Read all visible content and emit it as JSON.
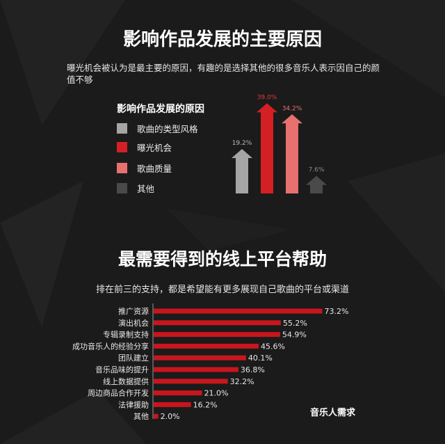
{
  "section1": {
    "title": "影响作品发展的主要原因",
    "description": "曝光机会被认为是最主要的原因，有趣的是选择其他的很多音乐人表示因自己的颜值不够",
    "legend_title": "影响作品发展的原因"
  },
  "section2": {
    "title": "最需要得到的线上平台帮助",
    "description": "排在前三的支持，都是希望能有更多展现自己歌曲的平台或渠道",
    "footer_label": "音乐人需求"
  },
  "colors": {
    "gray": "#a5a5a5",
    "red": "#d42024",
    "pink": "#e8706f",
    "dark": "#4a4a4a",
    "bar_red": "#c8161d",
    "label_red": "#e23a3a"
  },
  "chart_data": [
    {
      "type": "bar",
      "title": "影响作品发展的原因",
      "categories": [
        "歌曲的类型风格",
        "曝光机会",
        "歌曲质量",
        "其他"
      ],
      "values": [
        19.2,
        39.0,
        34.2,
        7.6
      ],
      "value_labels": [
        "19.2%",
        "39.0%",
        "34.2%",
        "7.6%"
      ],
      "bar_colors": [
        "#a5a5a5",
        "#d42024",
        "#e8706f",
        "#4a4a4a"
      ],
      "label_colors": [
        "#bdbdbd",
        "#e23a3a",
        "#e8706f",
        "#8a8a8a"
      ],
      "style": "arrow",
      "ylim": [
        0,
        40
      ]
    },
    {
      "type": "bar",
      "orientation": "horizontal",
      "title": "",
      "categories": [
        "推广资源",
        "演出机会",
        "专辑录制支持",
        "成功音乐人的经验分享",
        "团队建立",
        "音乐品味的提升",
        "线上数据提供",
        "周边商品合作开发",
        "法律援助",
        "其他"
      ],
      "values": [
        73.2,
        55.2,
        54.9,
        45.6,
        40.1,
        36.8,
        32.2,
        21.0,
        16.2,
        2.0
      ],
      "value_labels": [
        "73.2%",
        "55.2%",
        "54.9%",
        "45.6%",
        "40.1%",
        "36.8%",
        "32.2%",
        "21.0%",
        "16.2%",
        "2.0%"
      ],
      "xlim": [
        0,
        80
      ]
    }
  ]
}
